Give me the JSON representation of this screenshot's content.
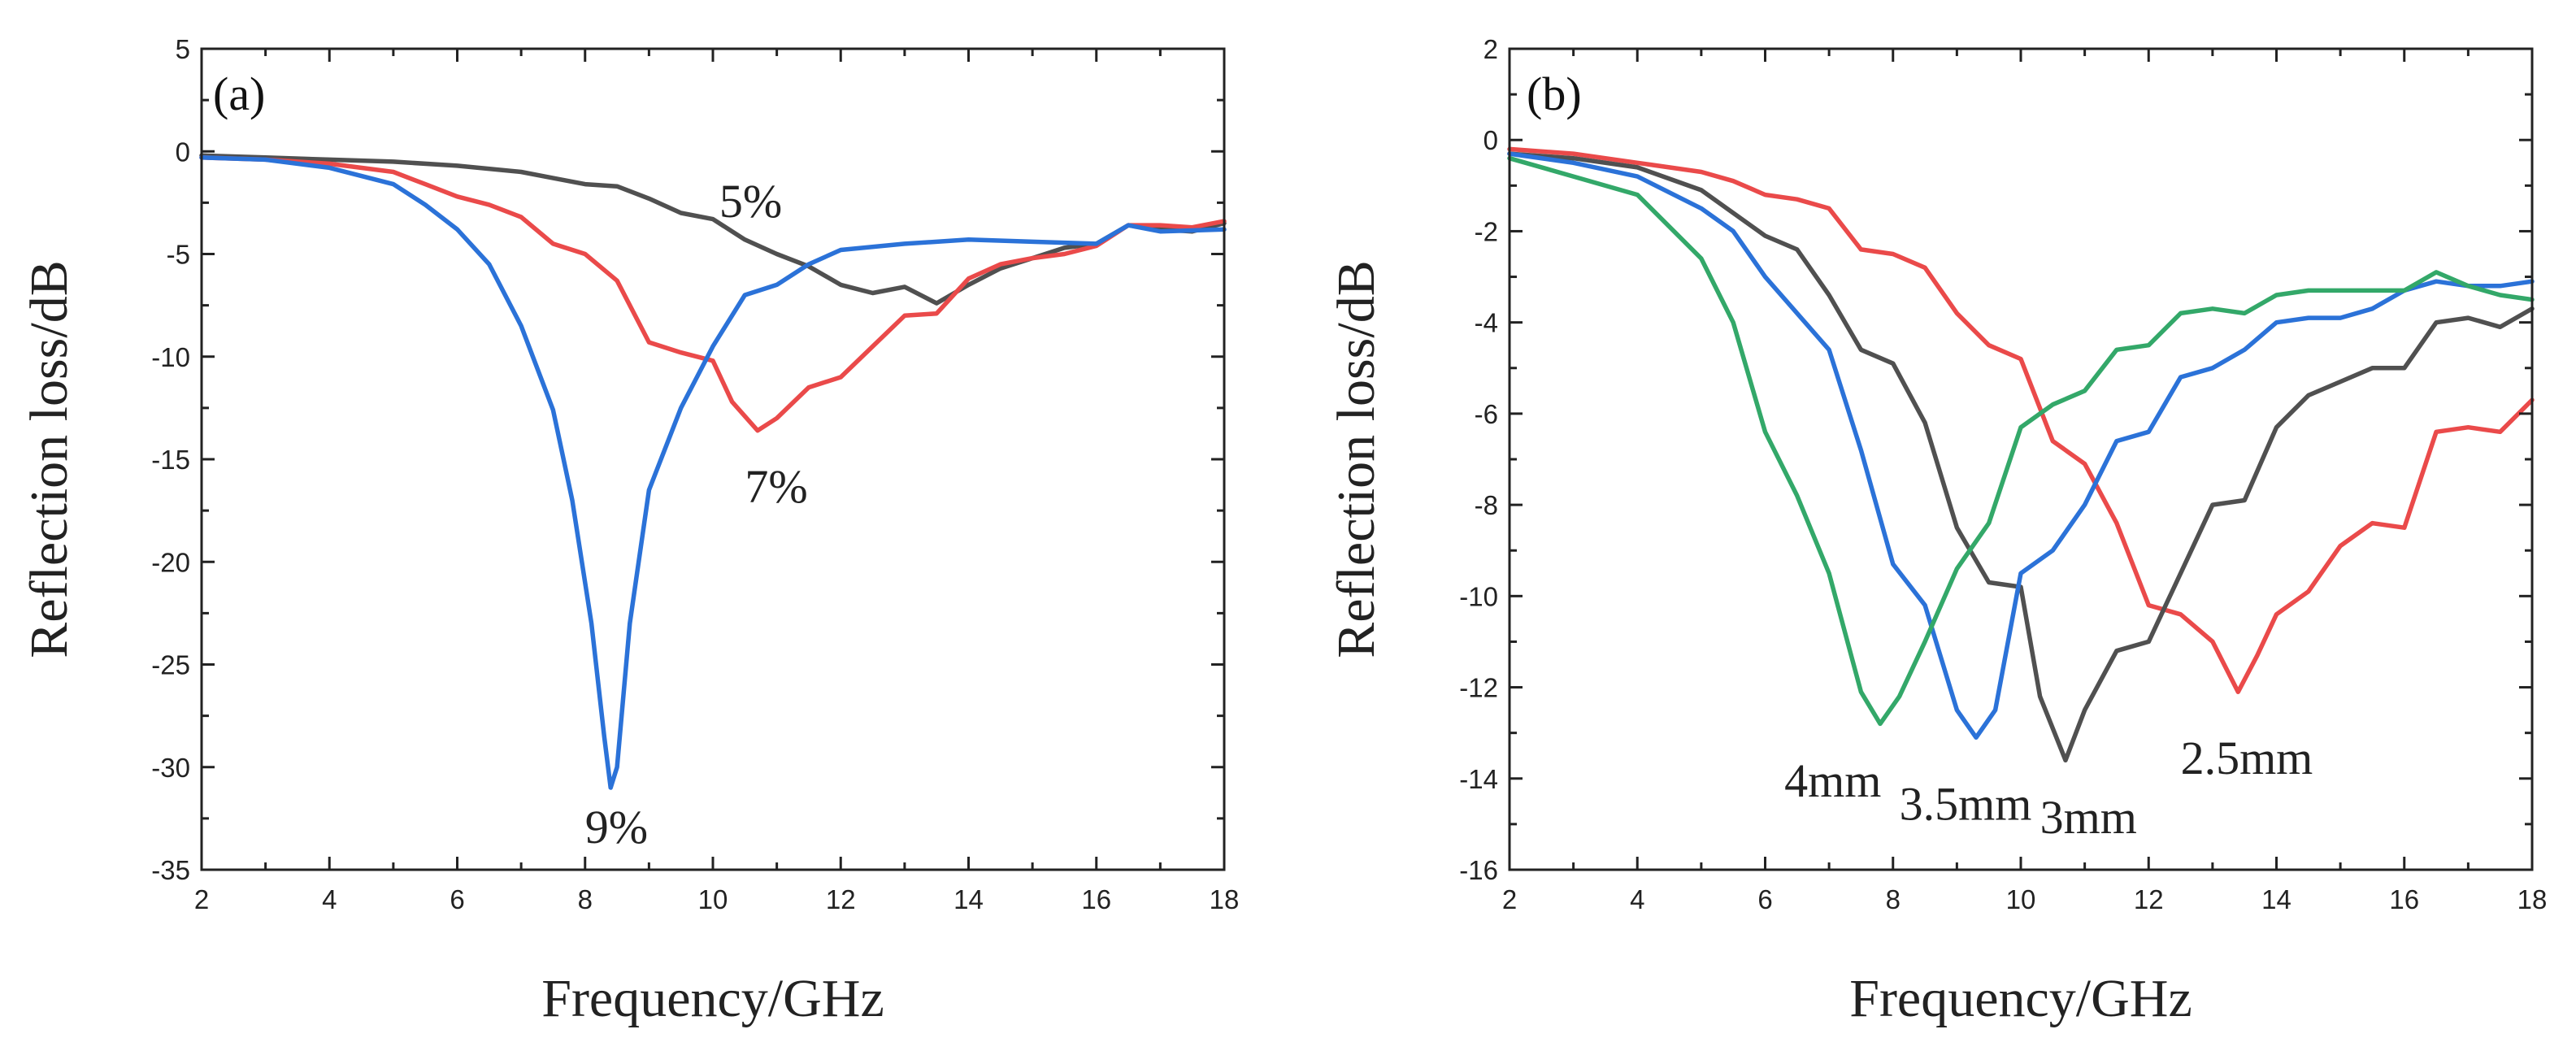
{
  "chart_data": [
    {
      "type": "line",
      "panel_label": "(a)",
      "xlabel": "Frequency/GHz",
      "ylabel": "Reflection loss/dB",
      "xlim": [
        2,
        18
      ],
      "ylim": [
        -35,
        5
      ],
      "xticks": [
        2,
        4,
        6,
        8,
        10,
        12,
        14,
        16,
        18
      ],
      "yticks": [
        5,
        0,
        -5,
        -10,
        -15,
        -20,
        -25,
        -30,
        -35
      ],
      "series": [
        {
          "name": "5%",
          "color": "#505050",
          "x": [
            2,
            3,
            4,
            5,
            6,
            7,
            7.5,
            8,
            8.5,
            9,
            9.5,
            10,
            10.5,
            11,
            11.5,
            12,
            12.5,
            13,
            13.5,
            14,
            14.5,
            15,
            15.5,
            16,
            16.5,
            17,
            17.5,
            18
          ],
          "y": [
            -0.2,
            -0.3,
            -0.4,
            -0.5,
            -0.7,
            -1.0,
            -1.3,
            -1.6,
            -1.7,
            -2.3,
            -3.0,
            -3.3,
            -4.3,
            -5.0,
            -5.6,
            -6.5,
            -6.9,
            -6.6,
            -7.4,
            -6.5,
            -5.7,
            -5.2,
            -4.7,
            -4.5,
            -3.6,
            -3.8,
            -3.9,
            -3.5
          ]
        },
        {
          "name": "7%",
          "color": "#ea4a4a",
          "x": [
            2,
            3,
            4,
            5,
            5.5,
            6,
            6.5,
            7,
            7.5,
            8,
            8.5,
            9,
            9.5,
            10,
            10.3,
            10.7,
            11,
            11.5,
            12,
            12.5,
            13,
            13.5,
            14,
            14.5,
            15,
            15.5,
            16,
            16.5,
            17,
            17.5,
            18
          ],
          "y": [
            -0.3,
            -0.4,
            -0.6,
            -1.0,
            -1.6,
            -2.2,
            -2.6,
            -3.2,
            -4.5,
            -5.0,
            -6.3,
            -9.3,
            -9.8,
            -10.2,
            -12.2,
            -13.6,
            -13.0,
            -11.5,
            -11.0,
            -9.5,
            -8.0,
            -7.9,
            -6.2,
            -5.5,
            -5.2,
            -5.0,
            -4.6,
            -3.6,
            -3.6,
            -3.7,
            -3.4
          ]
        },
        {
          "name": "9%",
          "color": "#2b72d8",
          "x": [
            2,
            3,
            4,
            5,
            5.5,
            6,
            6.5,
            7,
            7.5,
            7.8,
            8.1,
            8.3,
            8.4,
            8.5,
            8.7,
            9.0,
            9.5,
            10,
            10.5,
            11,
            11.5,
            12,
            13,
            14,
            15,
            16,
            16.5,
            17,
            18
          ],
          "y": [
            -0.3,
            -0.4,
            -0.8,
            -1.6,
            -2.6,
            -3.8,
            -5.5,
            -8.5,
            -12.6,
            -17.0,
            -23.0,
            -28.5,
            -31.0,
            -30.0,
            -23.0,
            -16.5,
            -12.5,
            -9.5,
            -7.0,
            -6.5,
            -5.5,
            -4.8,
            -4.5,
            -4.3,
            -4.4,
            -4.5,
            -3.6,
            -3.9,
            -3.8
          ]
        }
      ],
      "annotations": [
        {
          "text": "5%",
          "x": 10.1,
          "y": -3.2
        },
        {
          "text": "7%",
          "x": 10.5,
          "y": -17.1
        },
        {
          "text": "9%",
          "x": 8.0,
          "y": -33.7
        }
      ]
    },
    {
      "type": "line",
      "panel_label": "(b)",
      "xlabel": "Frequency/GHz",
      "ylabel": "Reflection loss/dB",
      "xlim": [
        2,
        18
      ],
      "ylim": [
        -16,
        2
      ],
      "xticks": [
        2,
        4,
        6,
        8,
        10,
        12,
        14,
        16,
        18
      ],
      "yticks": [
        2,
        0,
        -2,
        -4,
        -6,
        -8,
        -10,
        -12,
        -14,
        -16
      ],
      "series": [
        {
          "name": "2.5mm",
          "color": "#ea4a4a",
          "x": [
            2,
            3,
            4,
            5,
            5.5,
            6,
            6.5,
            7,
            7.5,
            8,
            8.5,
            9,
            9.5,
            10,
            10.5,
            11,
            11.5,
            12,
            12.5,
            13,
            13.4,
            13.7,
            14,
            14.5,
            15,
            15.5,
            16,
            16.5,
            17,
            17.5,
            18
          ],
          "y": [
            -0.2,
            -0.3,
            -0.5,
            -0.7,
            -0.9,
            -1.2,
            -1.3,
            -1.5,
            -2.4,
            -2.5,
            -2.8,
            -3.8,
            -4.5,
            -4.8,
            -6.6,
            -7.1,
            -8.4,
            -10.2,
            -10.4,
            -11.0,
            -12.1,
            -11.3,
            -10.4,
            -9.9,
            -8.9,
            -8.4,
            -8.5,
            -6.4,
            -6.3,
            -6.4,
            -5.7
          ]
        },
        {
          "name": "3mm",
          "color": "#505050",
          "x": [
            2,
            3,
            4,
            5,
            5.5,
            6,
            6.5,
            7,
            7.5,
            8,
            8.5,
            9,
            9.5,
            10,
            10.3,
            10.7,
            11,
            11.5,
            12,
            12.5,
            13,
            13.5,
            14,
            14.5,
            15,
            15.5,
            16,
            16.5,
            17,
            17.5,
            18
          ],
          "y": [
            -0.3,
            -0.4,
            -0.6,
            -1.1,
            -1.6,
            -2.1,
            -2.4,
            -3.4,
            -4.6,
            -4.9,
            -6.2,
            -8.5,
            -9.7,
            -9.8,
            -12.2,
            -13.6,
            -12.5,
            -11.2,
            -11.0,
            -9.5,
            -8.0,
            -7.9,
            -6.3,
            -5.6,
            -5.3,
            -5.0,
            -5.0,
            -4.0,
            -3.9,
            -4.1,
            -3.7
          ]
        },
        {
          "name": "3.5mm",
          "color": "#2b72d8",
          "x": [
            2,
            3,
            4,
            5,
            5.5,
            6,
            6.5,
            7,
            7.5,
            8,
            8.5,
            9,
            9.3,
            9.6,
            10,
            10.5,
            11,
            11.5,
            12,
            12.5,
            13,
            13.5,
            14,
            14.5,
            15,
            15.5,
            16,
            16.5,
            17,
            17.5,
            18
          ],
          "y": [
            -0.3,
            -0.5,
            -0.8,
            -1.5,
            -2.0,
            -3.0,
            -3.8,
            -4.6,
            -6.8,
            -9.3,
            -10.2,
            -12.5,
            -13.1,
            -12.5,
            -9.5,
            -9.0,
            -8.0,
            -6.6,
            -6.4,
            -5.2,
            -5.0,
            -4.6,
            -4.0,
            -3.9,
            -3.9,
            -3.7,
            -3.3,
            -3.1,
            -3.2,
            -3.2,
            -3.1
          ]
        },
        {
          "name": "4mm",
          "color": "#33a869",
          "x": [
            2,
            3,
            4,
            4.5,
            5,
            5.5,
            6,
            6.5,
            7,
            7.5,
            7.8,
            8.1,
            8.5,
            9,
            9.5,
            10,
            10.5,
            11,
            11.5,
            12,
            12.5,
            13,
            13.5,
            14,
            14.5,
            15,
            15.5,
            16,
            16.5,
            17,
            17.5,
            18
          ],
          "y": [
            -0.4,
            -0.8,
            -1.2,
            -1.9,
            -2.6,
            -4.0,
            -6.4,
            -7.8,
            -9.5,
            -12.1,
            -12.8,
            -12.2,
            -11.0,
            -9.4,
            -8.4,
            -6.3,
            -5.8,
            -5.5,
            -4.6,
            -4.5,
            -3.8,
            -3.7,
            -3.8,
            -3.4,
            -3.3,
            -3.3,
            -3.3,
            -3.3,
            -2.9,
            -3.2,
            -3.4,
            -3.5
          ]
        }
      ],
      "annotations": [
        {
          "text": "4mm",
          "x": 6.3,
          "y": -14.4
        },
        {
          "text": "3.5mm",
          "x": 8.1,
          "y": -14.9
        },
        {
          "text": "3mm",
          "x": 10.3,
          "y": -15.2
        },
        {
          "text": "2.5mm",
          "x": 12.5,
          "y": -13.9
        }
      ]
    }
  ]
}
